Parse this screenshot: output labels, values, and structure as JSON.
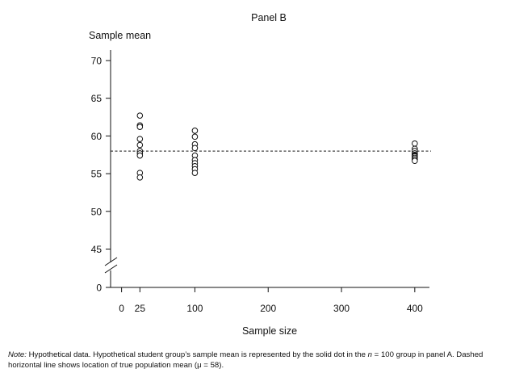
{
  "chart_data": {
    "type": "scatter",
    "title": "Panel B",
    "xlabel": "Sample size",
    "ylabel": "Sample mean",
    "xlim": [
      -15,
      420
    ],
    "ylim": [
      40,
      71
    ],
    "x_ticks": [
      0,
      25,
      100,
      200,
      300,
      400
    ],
    "x_tick_labels": [
      "0",
      "25",
      "100",
      "200",
      "300",
      "400"
    ],
    "y_ticks": [
      45,
      50,
      55,
      60,
      65,
      70
    ],
    "y_tick_labels": [
      "45",
      "50",
      "55",
      "60",
      "65",
      "70"
    ],
    "y_break_label": "0",
    "y_axis_break": true,
    "reference_line": {
      "y": 58,
      "style": "dashed"
    },
    "marker": "open-circle",
    "grid": false,
    "points": [
      {
        "x": 25,
        "y": 62.7
      },
      {
        "x": 25,
        "y": 61.4
      },
      {
        "x": 25,
        "y": 61.2
      },
      {
        "x": 25,
        "y": 59.6
      },
      {
        "x": 25,
        "y": 58.8
      },
      {
        "x": 25,
        "y": 58.0
      },
      {
        "x": 25,
        "y": 57.7
      },
      {
        "x": 25,
        "y": 57.4
      },
      {
        "x": 25,
        "y": 55.1
      },
      {
        "x": 25,
        "y": 54.5
      },
      {
        "x": 100,
        "y": 60.7
      },
      {
        "x": 100,
        "y": 59.9
      },
      {
        "x": 100,
        "y": 58.9
      },
      {
        "x": 100,
        "y": 58.4
      },
      {
        "x": 100,
        "y": 57.4
      },
      {
        "x": 100,
        "y": 56.8
      },
      {
        "x": 100,
        "y": 56.4
      },
      {
        "x": 100,
        "y": 56.0
      },
      {
        "x": 100,
        "y": 55.6
      },
      {
        "x": 100,
        "y": 55.1
      },
      {
        "x": 400,
        "y": 59.0
      },
      {
        "x": 400,
        "y": 58.3
      },
      {
        "x": 400,
        "y": 58.0
      },
      {
        "x": 400,
        "y": 57.7
      },
      {
        "x": 400,
        "y": 57.5
      },
      {
        "x": 400,
        "y": 57.4
      },
      {
        "x": 400,
        "y": 57.3
      },
      {
        "x": 400,
        "y": 57.1
      },
      {
        "x": 400,
        "y": 56.9
      },
      {
        "x": 400,
        "y": 56.7
      }
    ]
  },
  "note": {
    "label": "Note:",
    "text_before_n": " Hypothetical data. Hypothetical student group’s sample mean is represented by the solid dot in the ",
    "n_symbol": "n",
    "text_after_n": " = 100 group in panel A. Dashed horizontal line shows location of true population mean (μ = 58)."
  }
}
